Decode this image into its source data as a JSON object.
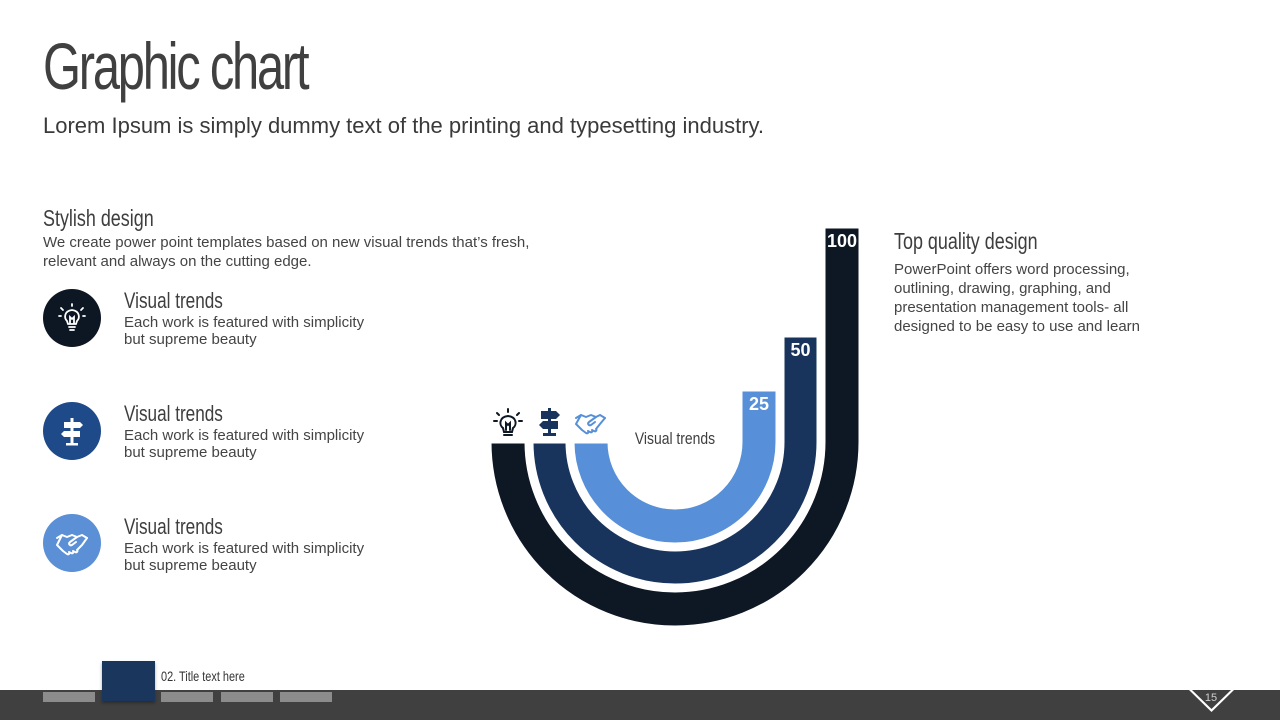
{
  "header": {
    "title": "Graphic chart",
    "subtitle": "Lorem Ipsum is simply dummy text of the printing and typesetting industry."
  },
  "left_panel": {
    "heading": "Stylish design",
    "text": "We create power point templates based on new visual trends that’s fresh, relevant and always on the cutting edge.",
    "features": [
      {
        "icon": "lightbulb-icon",
        "color": "#0d1724",
        "heading": "Visual trends",
        "text": "Each work is featured with simplicity but supreme beauty"
      },
      {
        "icon": "signpost-icon",
        "color": "#1e4a8a",
        "heading": "Visual trends",
        "text": "Each work is featured with simplicity but supreme beauty"
      },
      {
        "icon": "handshake-icon",
        "color": "#5b8fd6",
        "heading": "Visual trends",
        "text": "Each work is featured with simplicity but supreme beauty"
      }
    ]
  },
  "right_panel": {
    "heading": "Top quality design",
    "text": "PowerPoint offers word processing, outlining, drawing, graphing, and presentation management tools- all designed to be easy to use and learn"
  },
  "chart_data": {
    "type": "other",
    "center_label": "Visual trends",
    "series": [
      {
        "value": 100,
        "label": "100",
        "color": "#0e1724",
        "icon": "lightbulb-icon"
      },
      {
        "value": 50,
        "label": "50",
        "color": "#19345c",
        "icon": "signpost-icon"
      },
      {
        "value": 25,
        "label": "25",
        "color": "#5790d8",
        "icon": "handshake-icon"
      }
    ]
  },
  "footer": {
    "label": "02. Title text here",
    "page_number": "15"
  }
}
